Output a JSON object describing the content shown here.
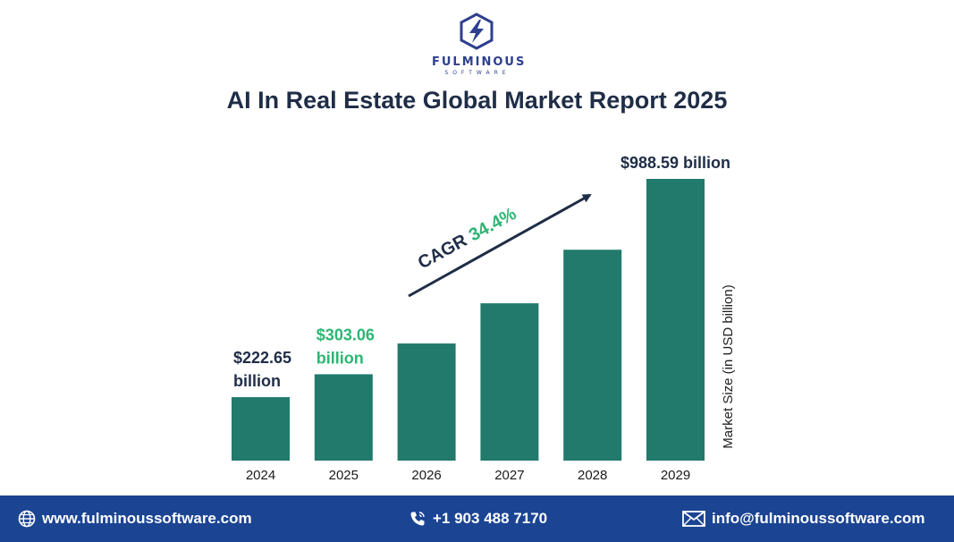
{
  "brand": {
    "name": "FULMINOUS",
    "tagline": "SOFTWARE",
    "colors": {
      "primary": "#2e3f8f",
      "bar": "#217a6b",
      "accent_green": "#2bb673",
      "footer": "#1b4493"
    }
  },
  "title": "AI In Real Estate Global Market Report 2025",
  "chart_data": {
    "type": "bar",
    "title": "AI In Real Estate Global Market Report 2025",
    "categories": [
      "2024",
      "2025",
      "2026",
      "2027",
      "2028",
      "2029"
    ],
    "values": [
      222.65,
      303.06,
      411.0,
      552.0,
      740.0,
      988.59
    ],
    "ylabel": "Market Size (in USD billion)",
    "xlabel": "",
    "ylim": [
      0,
      1000
    ],
    "grid": false,
    "data_labels": [
      {
        "index": 0,
        "lines": [
          "$222.65",
          "billion"
        ],
        "color": "#1f2d47"
      },
      {
        "index": 1,
        "lines": [
          "$303.06",
          "billion"
        ],
        "color": "#2bb673"
      },
      {
        "index": 5,
        "lines": [
          "$988.59 billion"
        ],
        "color": "#1f2d47"
      }
    ],
    "annotation": {
      "label": "CAGR",
      "value": "34.4%",
      "label_color": "#1f2d47",
      "value_color": "#2bb673"
    }
  },
  "footer": {
    "website": "www.fulminoussoftware.com",
    "phone": "+1 903 488 7170",
    "email": "info@fulminoussoftware.com",
    "icons": [
      "globe-icon",
      "phone-icon",
      "mail-icon"
    ]
  }
}
